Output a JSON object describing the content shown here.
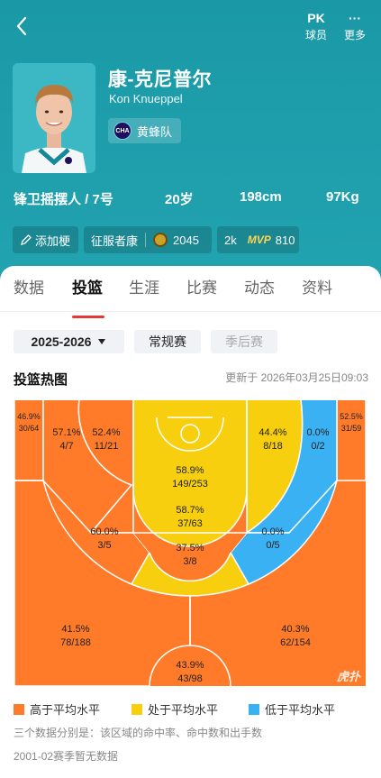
{
  "header": {
    "pk_label": "球员",
    "more_label": "更多",
    "pk_icon": "PK",
    "more_icon": "···"
  },
  "player": {
    "name_cn": "康-克尼普尔",
    "name_en": "Kon Knueppel",
    "team_abbr": "CHA",
    "team": "黄蜂队",
    "position_number": "锋卫摇摆人 / 7号",
    "age": "20岁",
    "height": "198cm",
    "weight": "97Kg"
  },
  "tags": {
    "add": "添加梗",
    "nickname": "征服者康",
    "nickname_count": "2045",
    "mvp_prefix": "2k",
    "mvp_badge": "MVP",
    "mvp_count": "810"
  },
  "tabs": [
    "数据",
    "投篮",
    "生涯",
    "比赛",
    "动态",
    "资料"
  ],
  "filters": {
    "season": "2025-2026",
    "regular": "常规赛",
    "playoffs": "季后赛"
  },
  "heatmap": {
    "title": "投篮热图",
    "updated": "更新于 2026年03月25日09:03",
    "colors": {
      "above": "#ff7a29",
      "average": "#f7cf0f",
      "below": "#3ab1f2"
    },
    "zones": {
      "left_corner": {
        "pct": "46.9%",
        "made_att": "30/64"
      },
      "right_corner": {
        "pct": "52.5%",
        "made_att": "31/59"
      },
      "left_baseline_mid": {
        "pct": "57.1%",
        "made_att": "4/7"
      },
      "left_elbow_mid": {
        "pct": "52.4%",
        "made_att": "11/21"
      },
      "restricted": {
        "pct": "58.9%",
        "made_att": "149/253"
      },
      "right_elbow_mid": {
        "pct": "44.4%",
        "made_att": "8/18"
      },
      "right_baseline_mid": {
        "pct": "0.0%",
        "made_att": "0/2"
      },
      "paint": {
        "pct": "58.7%",
        "made_att": "37/63"
      },
      "left_wing_mid": {
        "pct": "60.0%",
        "made_att": "3/5"
      },
      "right_wing_mid": {
        "pct": "0.0%",
        "made_att": "0/5"
      },
      "top_key_mid": {
        "pct": "37.5%",
        "made_att": "3/8"
      },
      "left_wing_three": {
        "pct": "41.5%",
        "made_att": "78/188"
      },
      "right_wing_three": {
        "pct": "40.3%",
        "made_att": "62/154"
      },
      "top_three": {
        "pct": "43.9%",
        "made_att": "43/98"
      }
    },
    "watermark": "虎扑"
  },
  "legend": {
    "above": "高于平均水平",
    "average": "处于平均水平",
    "below": "低于平均水平"
  },
  "notes": {
    "explain": "三个数据分别是：该区域的命中率、命中数和出手数",
    "no_data": "2001-02赛季暂无数据"
  }
}
